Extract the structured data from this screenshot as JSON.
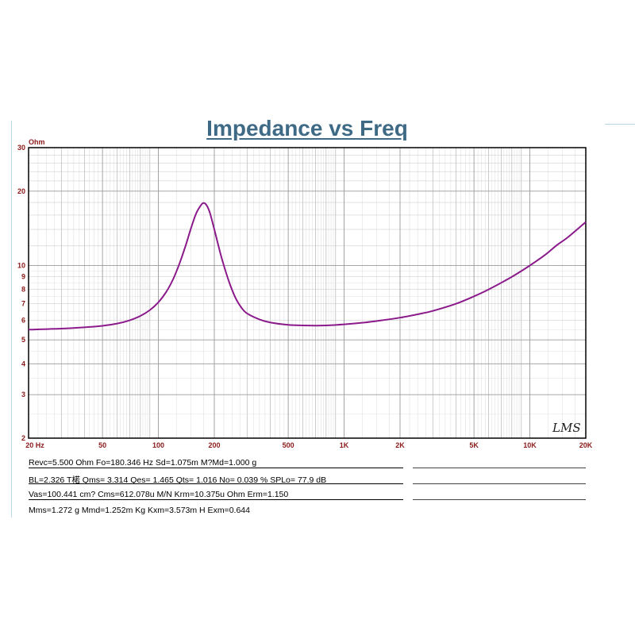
{
  "chart_data": {
    "type": "line",
    "title": "Impedance vs Freq",
    "ylabel": "Ohm",
    "x_scale": "log",
    "y_scale": "log",
    "xlim": [
      20,
      20000
    ],
    "ylim": [
      2,
      30
    ],
    "x_tick_labels": [
      "20 Hz",
      "50",
      "100",
      "200",
      "500",
      "1K",
      "2K",
      "5K",
      "10K",
      "20K"
    ],
    "x_tick_values": [
      20,
      50,
      100,
      200,
      500,
      1000,
      2000,
      5000,
      10000,
      20000
    ],
    "y_tick_labels": [
      "30",
      "20",
      "10",
      "9",
      "8",
      "7",
      "6",
      "5",
      "4",
      "3",
      "2"
    ],
    "y_tick_values": [
      30,
      20,
      10,
      9,
      8,
      7,
      6,
      5,
      4,
      3,
      2
    ],
    "grid": true,
    "series": [
      {
        "color": "#8b1a8b",
        "x": [
          20,
          30,
          40,
          50,
          60,
          70,
          80,
          90,
          100,
          110,
          120,
          130,
          140,
          150,
          160,
          170,
          175,
          180,
          185,
          190,
          200,
          210,
          220,
          240,
          260,
          280,
          300,
          350,
          400,
          500,
          600,
          700,
          800,
          1000,
          1300,
          1600,
          2000,
          2500,
          3000,
          4000,
          5000,
          6000,
          8000,
          10000,
          12000,
          14000,
          16000,
          20000
        ],
        "y": [
          5.5,
          5.55,
          5.62,
          5.7,
          5.82,
          6.0,
          6.25,
          6.6,
          7.1,
          7.8,
          8.8,
          10.2,
          12.0,
          14.2,
          16.3,
          17.6,
          17.9,
          17.7,
          17.1,
          16.2,
          14.0,
          12.1,
          10.6,
          8.6,
          7.4,
          6.75,
          6.4,
          6.05,
          5.88,
          5.75,
          5.72,
          5.71,
          5.72,
          5.78,
          5.88,
          6.0,
          6.15,
          6.35,
          6.55,
          7.0,
          7.5,
          8.0,
          9.0,
          10.0,
          11.0,
          12.1,
          13.0,
          15.0
        ]
      }
    ],
    "watermark": "LMS"
  },
  "params": {
    "row1": "Revc=5.500 Ohm  Fo=180.346 Hz  Sd=1.075m M?Md=1.000 g",
    "row2": "BL=2.326 T楉  Qms= 3.314  Qes= 1.465  Qts= 1.016  No= 0.039 %  SPLo= 77.9 dB",
    "row3": "Vas=100.441 cm?  Cms=612.078u M/N  Krm=10.375u Ohm  Erm=1.150",
    "row4": "Mms=1.272 g  Mmd=1.252m Kg  Kxm=3.573m H  Exm=0.644"
  },
  "colors": {
    "curve": "#8b1a8b",
    "axis_tick_labels": "#8b1a1a",
    "title": "#3f6a86",
    "grid": "#9a9a9a",
    "frame_accent": "#b8d7ea"
  }
}
